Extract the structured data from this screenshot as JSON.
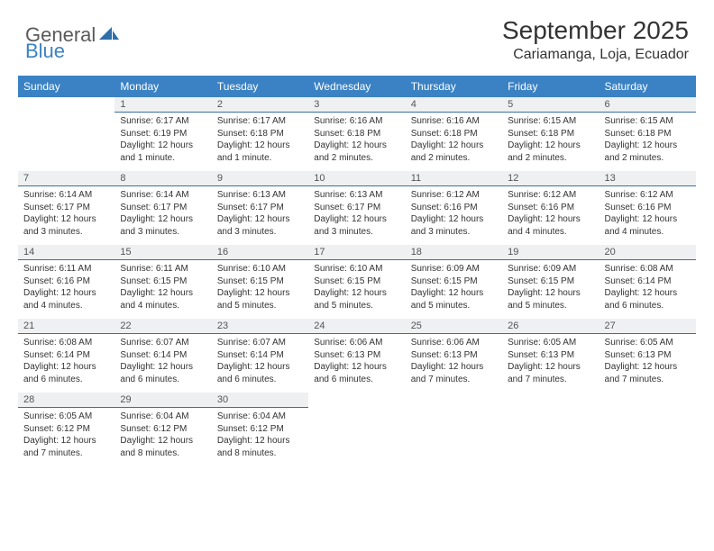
{
  "brand": {
    "part1": "General",
    "part2": "Blue"
  },
  "title": "September 2025",
  "location": "Cariamanga, Loja, Ecuador",
  "colors": {
    "header_bg": "#3b82c4",
    "header_text": "#ffffff",
    "daynum_bg": "#eef0f2",
    "daynum_border": "#3b6fa0",
    "body_text": "#333333",
    "logo_gray": "#5a5a5a",
    "logo_blue": "#3b82c4"
  },
  "weekdays": [
    "Sunday",
    "Monday",
    "Tuesday",
    "Wednesday",
    "Thursday",
    "Friday",
    "Saturday"
  ],
  "start_offset": 1,
  "days": [
    {
      "n": 1,
      "sunrise": "Sunrise: 6:17 AM",
      "sunset": "Sunset: 6:19 PM",
      "daylight": "Daylight: 12 hours and 1 minute."
    },
    {
      "n": 2,
      "sunrise": "Sunrise: 6:17 AM",
      "sunset": "Sunset: 6:18 PM",
      "daylight": "Daylight: 12 hours and 1 minute."
    },
    {
      "n": 3,
      "sunrise": "Sunrise: 6:16 AM",
      "sunset": "Sunset: 6:18 PM",
      "daylight": "Daylight: 12 hours and 2 minutes."
    },
    {
      "n": 4,
      "sunrise": "Sunrise: 6:16 AM",
      "sunset": "Sunset: 6:18 PM",
      "daylight": "Daylight: 12 hours and 2 minutes."
    },
    {
      "n": 5,
      "sunrise": "Sunrise: 6:15 AM",
      "sunset": "Sunset: 6:18 PM",
      "daylight": "Daylight: 12 hours and 2 minutes."
    },
    {
      "n": 6,
      "sunrise": "Sunrise: 6:15 AM",
      "sunset": "Sunset: 6:18 PM",
      "daylight": "Daylight: 12 hours and 2 minutes."
    },
    {
      "n": 7,
      "sunrise": "Sunrise: 6:14 AM",
      "sunset": "Sunset: 6:17 PM",
      "daylight": "Daylight: 12 hours and 3 minutes."
    },
    {
      "n": 8,
      "sunrise": "Sunrise: 6:14 AM",
      "sunset": "Sunset: 6:17 PM",
      "daylight": "Daylight: 12 hours and 3 minutes."
    },
    {
      "n": 9,
      "sunrise": "Sunrise: 6:13 AM",
      "sunset": "Sunset: 6:17 PM",
      "daylight": "Daylight: 12 hours and 3 minutes."
    },
    {
      "n": 10,
      "sunrise": "Sunrise: 6:13 AM",
      "sunset": "Sunset: 6:17 PM",
      "daylight": "Daylight: 12 hours and 3 minutes."
    },
    {
      "n": 11,
      "sunrise": "Sunrise: 6:12 AM",
      "sunset": "Sunset: 6:16 PM",
      "daylight": "Daylight: 12 hours and 3 minutes."
    },
    {
      "n": 12,
      "sunrise": "Sunrise: 6:12 AM",
      "sunset": "Sunset: 6:16 PM",
      "daylight": "Daylight: 12 hours and 4 minutes."
    },
    {
      "n": 13,
      "sunrise": "Sunrise: 6:12 AM",
      "sunset": "Sunset: 6:16 PM",
      "daylight": "Daylight: 12 hours and 4 minutes."
    },
    {
      "n": 14,
      "sunrise": "Sunrise: 6:11 AM",
      "sunset": "Sunset: 6:16 PM",
      "daylight": "Daylight: 12 hours and 4 minutes."
    },
    {
      "n": 15,
      "sunrise": "Sunrise: 6:11 AM",
      "sunset": "Sunset: 6:15 PM",
      "daylight": "Daylight: 12 hours and 4 minutes."
    },
    {
      "n": 16,
      "sunrise": "Sunrise: 6:10 AM",
      "sunset": "Sunset: 6:15 PM",
      "daylight": "Daylight: 12 hours and 5 minutes."
    },
    {
      "n": 17,
      "sunrise": "Sunrise: 6:10 AM",
      "sunset": "Sunset: 6:15 PM",
      "daylight": "Daylight: 12 hours and 5 minutes."
    },
    {
      "n": 18,
      "sunrise": "Sunrise: 6:09 AM",
      "sunset": "Sunset: 6:15 PM",
      "daylight": "Daylight: 12 hours and 5 minutes."
    },
    {
      "n": 19,
      "sunrise": "Sunrise: 6:09 AM",
      "sunset": "Sunset: 6:15 PM",
      "daylight": "Daylight: 12 hours and 5 minutes."
    },
    {
      "n": 20,
      "sunrise": "Sunrise: 6:08 AM",
      "sunset": "Sunset: 6:14 PM",
      "daylight": "Daylight: 12 hours and 6 minutes."
    },
    {
      "n": 21,
      "sunrise": "Sunrise: 6:08 AM",
      "sunset": "Sunset: 6:14 PM",
      "daylight": "Daylight: 12 hours and 6 minutes."
    },
    {
      "n": 22,
      "sunrise": "Sunrise: 6:07 AM",
      "sunset": "Sunset: 6:14 PM",
      "daylight": "Daylight: 12 hours and 6 minutes."
    },
    {
      "n": 23,
      "sunrise": "Sunrise: 6:07 AM",
      "sunset": "Sunset: 6:14 PM",
      "daylight": "Daylight: 12 hours and 6 minutes."
    },
    {
      "n": 24,
      "sunrise": "Sunrise: 6:06 AM",
      "sunset": "Sunset: 6:13 PM",
      "daylight": "Daylight: 12 hours and 6 minutes."
    },
    {
      "n": 25,
      "sunrise": "Sunrise: 6:06 AM",
      "sunset": "Sunset: 6:13 PM",
      "daylight": "Daylight: 12 hours and 7 minutes."
    },
    {
      "n": 26,
      "sunrise": "Sunrise: 6:05 AM",
      "sunset": "Sunset: 6:13 PM",
      "daylight": "Daylight: 12 hours and 7 minutes."
    },
    {
      "n": 27,
      "sunrise": "Sunrise: 6:05 AM",
      "sunset": "Sunset: 6:13 PM",
      "daylight": "Daylight: 12 hours and 7 minutes."
    },
    {
      "n": 28,
      "sunrise": "Sunrise: 6:05 AM",
      "sunset": "Sunset: 6:12 PM",
      "daylight": "Daylight: 12 hours and 7 minutes."
    },
    {
      "n": 29,
      "sunrise": "Sunrise: 6:04 AM",
      "sunset": "Sunset: 6:12 PM",
      "daylight": "Daylight: 12 hours and 8 minutes."
    },
    {
      "n": 30,
      "sunrise": "Sunrise: 6:04 AM",
      "sunset": "Sunset: 6:12 PM",
      "daylight": "Daylight: 12 hours and 8 minutes."
    }
  ]
}
